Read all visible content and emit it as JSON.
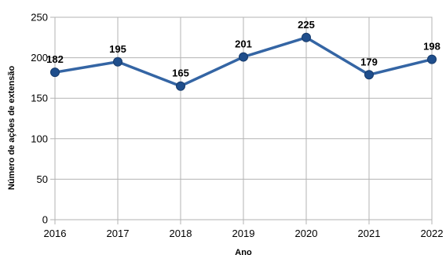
{
  "chart_data": {
    "type": "line",
    "title": "",
    "xlabel": "Ano",
    "ylabel": "Número de ações de extensão",
    "categories": [
      "2016",
      "2017",
      "2018",
      "2019",
      "2020",
      "2021",
      "2022"
    ],
    "series": [
      {
        "values": [
          182,
          195,
          165,
          201,
          225,
          179,
          198
        ],
        "color": "#3465a4",
        "marker_color": "#1f4e8c"
      }
    ],
    "y_ticks": [
      0,
      50,
      100,
      150,
      200,
      250
    ],
    "ylim": [
      0,
      250
    ],
    "grid": true,
    "legend": "none",
    "data_labels": true
  }
}
